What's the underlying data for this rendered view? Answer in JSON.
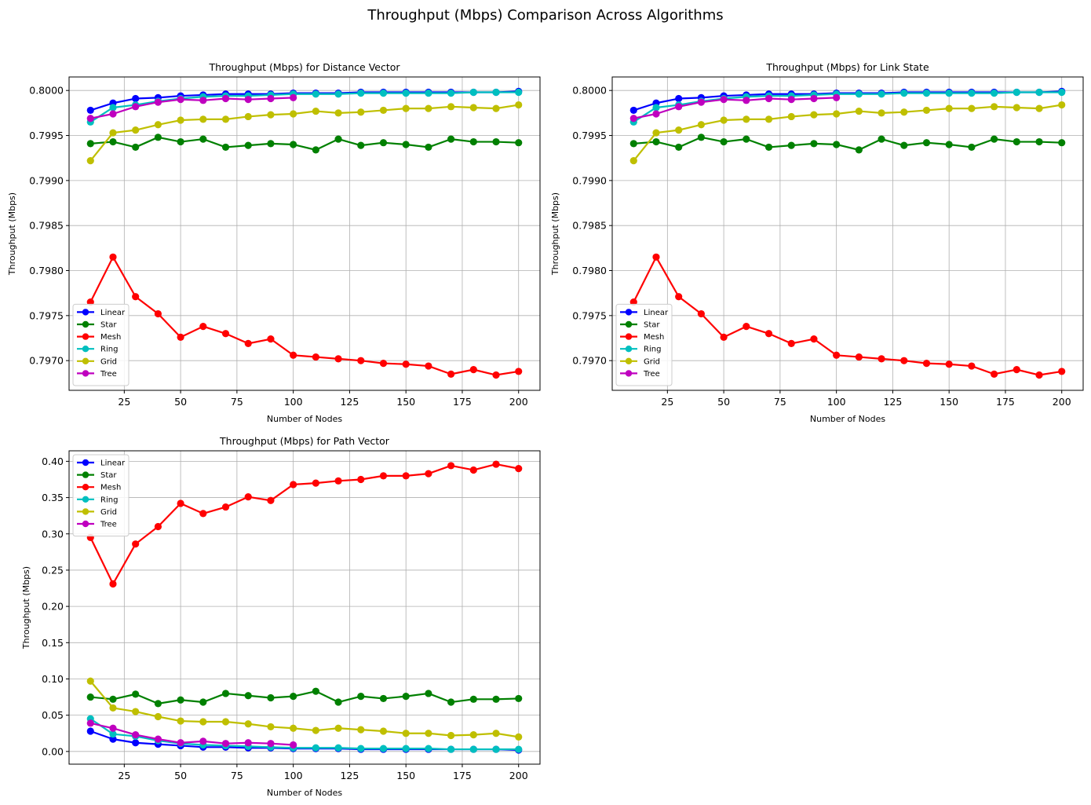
{
  "suptitle": "Throughput (Mbps) Comparison Across Algorithms",
  "chart_data": [
    {
      "type": "line",
      "title": "Throughput (Mbps) for Distance Vector",
      "xlabel": "Number of Nodes",
      "ylabel": "Throughput (Mbps)",
      "xlim": [
        0.5,
        209.5
      ],
      "ylim": [
        0.79667,
        0.80015
      ],
      "xticks": [
        25,
        50,
        75,
        100,
        125,
        150,
        175,
        200
      ],
      "yticks": [
        0.797,
        0.7975,
        0.798,
        0.7985,
        0.799,
        0.7995,
        0.8
      ],
      "ytick_labels": [
        "0.7970",
        "0.7975",
        "0.7980",
        "0.7985",
        "0.7990",
        "0.7995",
        "0.8000"
      ],
      "grid": true,
      "legend": "lower-left",
      "series": [
        {
          "name": "Linear",
          "color": "#0000ff",
          "x": [
            10,
            20,
            30,
            40,
            50,
            60,
            70,
            80,
            90,
            100,
            110,
            120,
            130,
            140,
            150,
            160,
            170,
            180,
            190,
            200
          ],
          "y": [
            0.79978,
            0.79986,
            0.79991,
            0.79992,
            0.79994,
            0.79995,
            0.79996,
            0.79996,
            0.79996,
            0.79997,
            0.79997,
            0.79997,
            0.79998,
            0.79998,
            0.79998,
            0.79998,
            0.79998,
            0.79998,
            0.79998,
            0.79999
          ]
        },
        {
          "name": "Star",
          "color": "#008000",
          "x": [
            10,
            20,
            30,
            40,
            50,
            60,
            70,
            80,
            90,
            100,
            110,
            120,
            130,
            140,
            150,
            160,
            170,
            180,
            190,
            200
          ],
          "y": [
            0.79941,
            0.79943,
            0.79937,
            0.79948,
            0.79943,
            0.79946,
            0.79937,
            0.79939,
            0.79941,
            0.7994,
            0.79934,
            0.79946,
            0.79939,
            0.79942,
            0.7994,
            0.79937,
            0.79946,
            0.79943,
            0.79943,
            0.79942
          ]
        },
        {
          "name": "Mesh",
          "color": "#ff0000",
          "x": [
            10,
            20,
            30,
            40,
            50,
            60,
            70,
            80,
            90,
            100,
            110,
            120,
            130,
            140,
            150,
            160,
            170,
            180,
            190,
            200
          ],
          "y": [
            0.79765,
            0.79815,
            0.79771,
            0.79752,
            0.79726,
            0.79738,
            0.7973,
            0.79719,
            0.79724,
            0.79706,
            0.79704,
            0.79702,
            0.797,
            0.79697,
            0.79696,
            0.79694,
            0.79685,
            0.7969,
            0.79684,
            0.79688
          ]
        },
        {
          "name": "Ring",
          "color": "#00bfbf",
          "x": [
            10,
            20,
            30,
            40,
            50,
            60,
            70,
            80,
            90,
            100,
            110,
            120,
            130,
            140,
            150,
            160,
            170,
            180,
            190,
            200
          ],
          "y": [
            0.79965,
            0.79981,
            0.79984,
            0.79988,
            0.79991,
            0.79993,
            0.79994,
            0.79994,
            0.79995,
            0.79996,
            0.79996,
            0.79996,
            0.79997,
            0.79997,
            0.79997,
            0.79997,
            0.79997,
            0.79998,
            0.79998,
            0.79998
          ]
        },
        {
          "name": "Grid",
          "color": "#bfbf00",
          "x": [
            10,
            20,
            30,
            40,
            50,
            60,
            70,
            80,
            90,
            100,
            110,
            120,
            130,
            140,
            150,
            160,
            170,
            180,
            190,
            200
          ],
          "y": [
            0.79922,
            0.79953,
            0.79956,
            0.79962,
            0.79967,
            0.79968,
            0.79968,
            0.79971,
            0.79973,
            0.79974,
            0.79977,
            0.79975,
            0.79976,
            0.79978,
            0.7998,
            0.7998,
            0.79982,
            0.79981,
            0.7998,
            0.79984
          ]
        },
        {
          "name": "Tree",
          "color": "#bf00bf",
          "x": [
            10,
            20,
            30,
            40,
            50,
            60,
            70,
            80,
            90,
            100
          ],
          "y": [
            0.79969,
            0.79974,
            0.79982,
            0.79987,
            0.7999,
            0.79989,
            0.79991,
            0.7999,
            0.79991,
            0.79992
          ]
        }
      ]
    },
    {
      "type": "line",
      "title": "Throughput (Mbps) for Link State",
      "xlabel": "Number of Nodes",
      "ylabel": "Throughput (Mbps)",
      "xlim": [
        0.5,
        209.5
      ],
      "ylim": [
        0.79667,
        0.80015
      ],
      "xticks": [
        25,
        50,
        75,
        100,
        125,
        150,
        175,
        200
      ],
      "yticks": [
        0.797,
        0.7975,
        0.798,
        0.7985,
        0.799,
        0.7995,
        0.8
      ],
      "ytick_labels": [
        "0.7970",
        "0.7975",
        "0.7980",
        "0.7985",
        "0.7990",
        "0.7995",
        "0.8000"
      ],
      "grid": true,
      "legend": "lower-left",
      "series": [
        {
          "name": "Linear",
          "color": "#0000ff",
          "x": [
            10,
            20,
            30,
            40,
            50,
            60,
            70,
            80,
            90,
            100,
            110,
            120,
            130,
            140,
            150,
            160,
            170,
            180,
            190,
            200
          ],
          "y": [
            0.79978,
            0.79986,
            0.79991,
            0.79992,
            0.79994,
            0.79995,
            0.79996,
            0.79996,
            0.79996,
            0.79997,
            0.79997,
            0.79997,
            0.79998,
            0.79998,
            0.79998,
            0.79998,
            0.79998,
            0.79998,
            0.79998,
            0.79999
          ]
        },
        {
          "name": "Star",
          "color": "#008000",
          "x": [
            10,
            20,
            30,
            40,
            50,
            60,
            70,
            80,
            90,
            100,
            110,
            120,
            130,
            140,
            150,
            160,
            170,
            180,
            190,
            200
          ],
          "y": [
            0.79941,
            0.79943,
            0.79937,
            0.79948,
            0.79943,
            0.79946,
            0.79937,
            0.79939,
            0.79941,
            0.7994,
            0.79934,
            0.79946,
            0.79939,
            0.79942,
            0.7994,
            0.79937,
            0.79946,
            0.79943,
            0.79943,
            0.79942
          ]
        },
        {
          "name": "Mesh",
          "color": "#ff0000",
          "x": [
            10,
            20,
            30,
            40,
            50,
            60,
            70,
            80,
            90,
            100,
            110,
            120,
            130,
            140,
            150,
            160,
            170,
            180,
            190,
            200
          ],
          "y": [
            0.79765,
            0.79815,
            0.79771,
            0.79752,
            0.79726,
            0.79738,
            0.7973,
            0.79719,
            0.79724,
            0.79706,
            0.79704,
            0.79702,
            0.797,
            0.79697,
            0.79696,
            0.79694,
            0.79685,
            0.7969,
            0.79684,
            0.79688
          ]
        },
        {
          "name": "Ring",
          "color": "#00bfbf",
          "x": [
            10,
            20,
            30,
            40,
            50,
            60,
            70,
            80,
            90,
            100,
            110,
            120,
            130,
            140,
            150,
            160,
            170,
            180,
            190,
            200
          ],
          "y": [
            0.79965,
            0.79981,
            0.79984,
            0.79988,
            0.79991,
            0.79993,
            0.79994,
            0.79994,
            0.79995,
            0.79996,
            0.79996,
            0.79996,
            0.79997,
            0.79997,
            0.79997,
            0.79997,
            0.79997,
            0.79998,
            0.79998,
            0.79998
          ]
        },
        {
          "name": "Grid",
          "color": "#bfbf00",
          "x": [
            10,
            20,
            30,
            40,
            50,
            60,
            70,
            80,
            90,
            100,
            110,
            120,
            130,
            140,
            150,
            160,
            170,
            180,
            190,
            200
          ],
          "y": [
            0.79922,
            0.79953,
            0.79956,
            0.79962,
            0.79967,
            0.79968,
            0.79968,
            0.79971,
            0.79973,
            0.79974,
            0.79977,
            0.79975,
            0.79976,
            0.79978,
            0.7998,
            0.7998,
            0.79982,
            0.79981,
            0.7998,
            0.79984
          ]
        },
        {
          "name": "Tree",
          "color": "#bf00bf",
          "x": [
            10,
            20,
            30,
            40,
            50,
            60,
            70,
            80,
            90,
            100
          ],
          "y": [
            0.79969,
            0.79974,
            0.79982,
            0.79987,
            0.7999,
            0.79989,
            0.79991,
            0.7999,
            0.79991,
            0.79992
          ]
        }
      ]
    },
    {
      "type": "line",
      "title": "Throughput (Mbps) for Path Vector",
      "xlabel": "Number of Nodes",
      "ylabel": "Throughput (Mbps)",
      "xlim": [
        0.5,
        209.5
      ],
      "ylim": [
        -0.0175,
        0.4145
      ],
      "xticks": [
        25,
        50,
        75,
        100,
        125,
        150,
        175,
        200
      ],
      "yticks": [
        0.0,
        0.05,
        0.1,
        0.15,
        0.2,
        0.25,
        0.3,
        0.35,
        0.4
      ],
      "ytick_labels": [
        "0.00",
        "0.05",
        "0.10",
        "0.15",
        "0.20",
        "0.25",
        "0.30",
        "0.35",
        "0.40"
      ],
      "grid": true,
      "legend": "upper-left",
      "series": [
        {
          "name": "Linear",
          "color": "#0000ff",
          "x": [
            10,
            20,
            30,
            40,
            50,
            60,
            70,
            80,
            90,
            100,
            110,
            120,
            130,
            140,
            150,
            160,
            170,
            180,
            190,
            200
          ],
          "y": [
            0.028,
            0.017,
            0.012,
            0.01,
            0.008,
            0.006,
            0.006,
            0.005,
            0.005,
            0.004,
            0.004,
            0.004,
            0.003,
            0.003,
            0.003,
            0.003,
            0.003,
            0.003,
            0.003,
            0.002
          ]
        },
        {
          "name": "Star",
          "color": "#008000",
          "x": [
            10,
            20,
            30,
            40,
            50,
            60,
            70,
            80,
            90,
            100,
            110,
            120,
            130,
            140,
            150,
            160,
            170,
            180,
            190,
            200
          ],
          "y": [
            0.075,
            0.072,
            0.079,
            0.066,
            0.071,
            0.068,
            0.08,
            0.077,
            0.074,
            0.076,
            0.083,
            0.068,
            0.076,
            0.073,
            0.076,
            0.08,
            0.068,
            0.072,
            0.072,
            0.073
          ]
        },
        {
          "name": "Mesh",
          "color": "#ff0000",
          "x": [
            10,
            20,
            30,
            40,
            50,
            60,
            70,
            80,
            90,
            100,
            110,
            120,
            130,
            140,
            150,
            160,
            170,
            180,
            190,
            200
          ],
          "y": [
            0.295,
            0.231,
            0.286,
            0.31,
            0.342,
            0.328,
            0.337,
            0.351,
            0.346,
            0.368,
            0.37,
            0.373,
            0.375,
            0.38,
            0.38,
            0.383,
            0.394,
            0.388,
            0.396,
            0.39
          ]
        },
        {
          "name": "Ring",
          "color": "#00bfbf",
          "x": [
            10,
            20,
            30,
            40,
            50,
            60,
            70,
            80,
            90,
            100,
            110,
            120,
            130,
            140,
            150,
            160,
            170,
            180,
            190,
            200
          ],
          "y": [
            0.045,
            0.024,
            0.021,
            0.015,
            0.011,
            0.009,
            0.008,
            0.007,
            0.006,
            0.005,
            0.005,
            0.005,
            0.004,
            0.004,
            0.004,
            0.004,
            0.003,
            0.003,
            0.003,
            0.003
          ]
        },
        {
          "name": "Grid",
          "color": "#bfbf00",
          "x": [
            10,
            20,
            30,
            40,
            50,
            60,
            70,
            80,
            90,
            100,
            110,
            120,
            130,
            140,
            150,
            160,
            170,
            180,
            190,
            200
          ],
          "y": [
            0.097,
            0.06,
            0.055,
            0.048,
            0.042,
            0.041,
            0.041,
            0.038,
            0.034,
            0.032,
            0.029,
            0.032,
            0.03,
            0.028,
            0.025,
            0.025,
            0.022,
            0.023,
            0.025,
            0.02
          ]
        },
        {
          "name": "Tree",
          "color": "#bf00bf",
          "x": [
            10,
            20,
            30,
            40,
            50,
            60,
            70,
            80,
            90,
            100
          ],
          "y": [
            0.039,
            0.032,
            0.023,
            0.017,
            0.012,
            0.014,
            0.011,
            0.012,
            0.011,
            0.009
          ]
        }
      ]
    }
  ]
}
